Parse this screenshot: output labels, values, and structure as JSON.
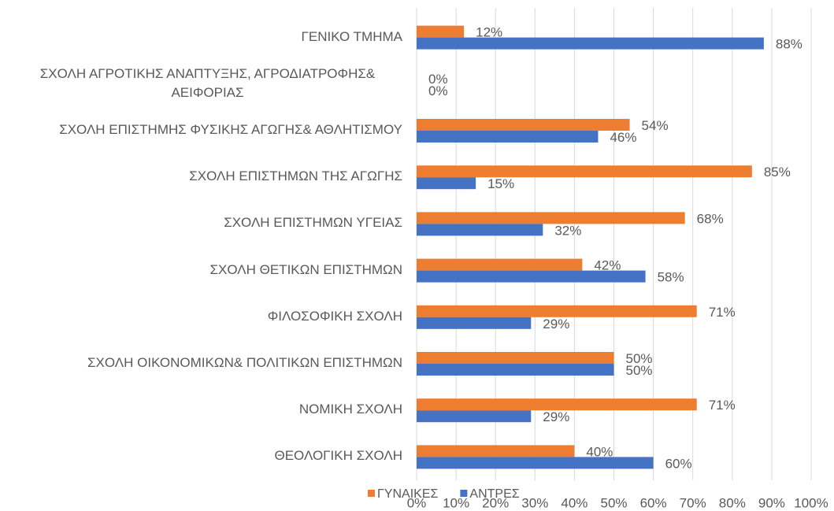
{
  "chart_data": {
    "type": "bar",
    "orientation": "horizontal",
    "categories": [
      "ΓΕΝΙΚΟ ΤΜΗΜΑ",
      "ΣΧΟΛΗ ΑΓΡΟΤΙΚΗΣ ΑΝΑΠΤΥΞΗΣ, ΑΓΡΟΔΙΑΤΡΟΦΗΣ& ΑΕΙΦΟΡΙΑΣ",
      "ΣΧΟΛΗ ΕΠΙΣΤΗΜΗΣ ΦΥΣΙΚΗΣ ΑΓΩΓΗΣ& ΑΘΛΗΤΙΣΜΟΥ",
      "ΣΧΟΛΗ ΕΠΙΣΤΗΜΩΝ ΤΗΣ ΑΓΩΓΗΣ",
      "ΣΧΟΛΗ ΕΠΙΣΤΗΜΩΝ ΥΓΕΙΑΣ",
      "ΣΧΟΛΗ ΘΕΤΙΚΩΝ ΕΠΙΣΤΗΜΩΝ",
      "ΦΙΛΟΣΟΦΙΚΗ ΣΧΟΛΗ",
      "ΣΧΟΛΗ ΟΙΚΟΝΟΜΙΚΩΝ& ΠΟΛΙΤΙΚΩΝ ΕΠΙΣΤΗΜΩΝ",
      "ΝΟΜΙΚΗ ΣΧΟΛΗ",
      "ΘΕΟΛΟΓΙΚΗ ΣΧΟΛΗ"
    ],
    "series": [
      {
        "name": "ΓΥΝΑΙΚΕΣ",
        "color": "#ed7d31",
        "values": [
          12,
          0,
          54,
          85,
          68,
          42,
          71,
          50,
          71,
          40
        ],
        "value_labels": [
          "12%",
          "0%",
          "54%",
          "85%",
          "68%",
          "42%",
          "71%",
          "50%",
          "71%",
          "40%"
        ]
      },
      {
        "name": "ΑΝΤΡΕΣ",
        "color": "#4472c4",
        "values": [
          88,
          0,
          46,
          15,
          32,
          58,
          29,
          50,
          29,
          60
        ],
        "value_labels": [
          "88%",
          "0%",
          "46%",
          "15%",
          "32%",
          "58%",
          "29%",
          "50%",
          "29%",
          "60%"
        ]
      }
    ],
    "xlim": [
      0,
      100
    ],
    "xticks": [
      {
        "value": 0,
        "label": "0%"
      },
      {
        "value": 10,
        "label": "10%"
      },
      {
        "value": 20,
        "label": "20%"
      },
      {
        "value": 30,
        "label": "30%"
      },
      {
        "value": 40,
        "label": "40%"
      },
      {
        "value": 50,
        "label": "50%"
      },
      {
        "value": 60,
        "label": "60%"
      },
      {
        "value": 70,
        "label": "70%"
      },
      {
        "value": 80,
        "label": "80%"
      },
      {
        "value": 90,
        "label": "90%"
      },
      {
        "value": 100,
        "label": "100%"
      }
    ],
    "grid": true,
    "legend": "bottom"
  }
}
